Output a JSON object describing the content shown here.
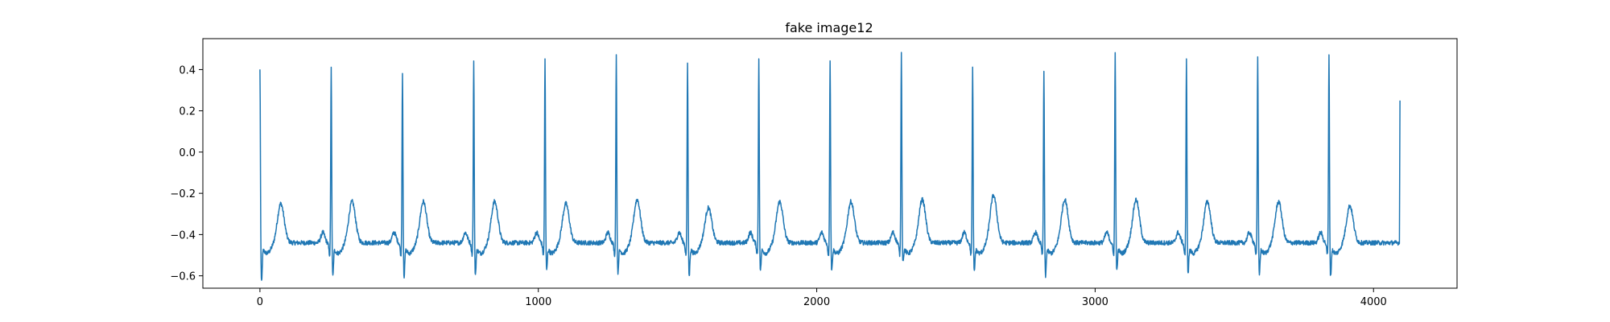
{
  "chart_data": {
    "type": "line",
    "title": "fake image12",
    "xlabel": "",
    "ylabel": "",
    "xlim": [
      -205,
      4300
    ],
    "ylim": [
      -0.66,
      0.55
    ],
    "x_ticks": [
      0,
      1000,
      2000,
      3000,
      4000
    ],
    "x_tick_labels": [
      "0",
      "1000",
      "2000",
      "3000",
      "4000"
    ],
    "y_ticks": [
      -0.6,
      -0.4,
      -0.2,
      0.0,
      0.2,
      0.4
    ],
    "y_tick_labels": [
      "−0.6",
      "−0.4",
      "−0.2",
      "0.0",
      "0.2",
      "0.4"
    ],
    "grid": false,
    "line_color": "#1f77b4",
    "series": [
      {
        "x_start": 0,
        "x_end": 4095,
        "beats": [
          {
            "r_x": 0,
            "r_peak": 0.42,
            "s_min": -0.61,
            "t_peak": -0.27
          },
          {
            "r_x": 256,
            "r_peak": 0.43,
            "s_min": -0.58,
            "t_peak": -0.26
          },
          {
            "r_x": 512,
            "r_peak": 0.4,
            "s_min": -0.58,
            "t_peak": -0.26
          },
          {
            "r_x": 768,
            "r_peak": 0.46,
            "s_min": -0.57,
            "t_peak": -0.26
          },
          {
            "r_x": 1024,
            "r_peak": 0.47,
            "s_min": -0.55,
            "t_peak": -0.27
          },
          {
            "r_x": 1280,
            "r_peak": 0.49,
            "s_min": -0.56,
            "t_peak": -0.25
          },
          {
            "r_x": 1536,
            "r_peak": 0.45,
            "s_min": -0.58,
            "t_peak": -0.29
          },
          {
            "r_x": 1792,
            "r_peak": 0.47,
            "s_min": -0.55,
            "t_peak": -0.26
          },
          {
            "r_x": 2048,
            "r_peak": 0.46,
            "s_min": -0.55,
            "t_peak": -0.26
          },
          {
            "r_x": 2304,
            "r_peak": 0.5,
            "s_min": -0.5,
            "t_peak": -0.25
          },
          {
            "r_x": 2560,
            "r_peak": 0.43,
            "s_min": -0.56,
            "t_peak": -0.23
          },
          {
            "r_x": 2816,
            "r_peak": 0.41,
            "s_min": -0.58,
            "t_peak": -0.25
          },
          {
            "r_x": 3072,
            "r_peak": 0.5,
            "s_min": -0.55,
            "t_peak": -0.25
          },
          {
            "r_x": 3328,
            "r_peak": 0.47,
            "s_min": -0.56,
            "t_peak": -0.26
          },
          {
            "r_x": 3584,
            "r_peak": 0.48,
            "s_min": -0.57,
            "t_peak": -0.26
          },
          {
            "r_x": 3840,
            "r_peak": 0.49,
            "s_min": -0.58,
            "t_peak": -0.28
          }
        ],
        "baseline": -0.44,
        "end_value": 0.25
      }
    ]
  }
}
